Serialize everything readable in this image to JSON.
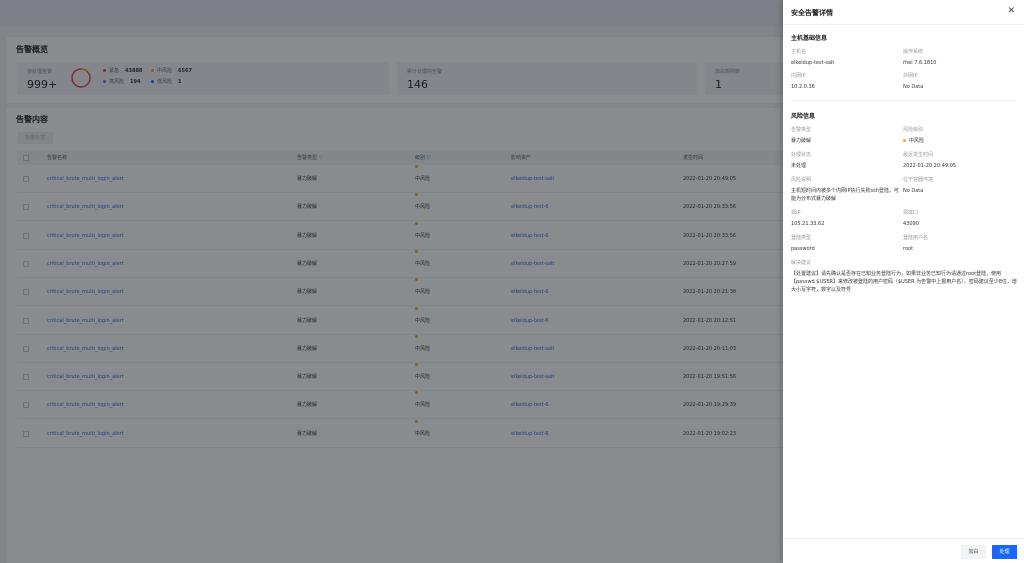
{
  "overview": {
    "title": "告警概览",
    "pending_label": "待处理告警",
    "pending_value": "999+",
    "legend": [
      {
        "label": "紧急",
        "value": "43888",
        "color": "#e0474c"
      },
      {
        "label": "中风险",
        "value": "6567",
        "color": "#f5a623"
      },
      {
        "label": "高风险",
        "value": "194",
        "color": "#7b61ff"
      },
      {
        "label": "低风险",
        "value": "1",
        "color": "#1966ff"
      }
    ],
    "handled_label": "累计处理的告警",
    "handled_value": "146",
    "whitelist_label": "加白规则数",
    "whitelist_value": "1"
  },
  "content": {
    "title": "告警内容",
    "batch_button": "批量处理",
    "columns": [
      "告警名称",
      "告警类型",
      "级别",
      "影响资产",
      "发生时间"
    ],
    "rows": [
      {
        "name": "critical_brute_multi_login_alert",
        "type": "暴力破解",
        "level": "中风险",
        "asset": "elkeidup-test-salt",
        "time": "2022-01-20 20:49:05"
      },
      {
        "name": "critical_brute_multi_login_alert",
        "type": "暴力破解",
        "level": "中风险",
        "asset": "elkeidup-test-6",
        "time": "2022-01-20 20:33:56"
      },
      {
        "name": "critical_brute_multi_login_alert",
        "type": "暴力破解",
        "level": "中风险",
        "asset": "elkeidup-test-6",
        "time": "2022-01-20 20:33:56"
      },
      {
        "name": "critical_brute_multi_login_alert",
        "type": "暴力破解",
        "level": "中风险",
        "asset": "elkeidup-test-salt",
        "time": "2022-01-20 20:27:59"
      },
      {
        "name": "critical_brute_multi_login_alert",
        "type": "暴力破解",
        "level": "中风险",
        "asset": "elkeidup-test-6",
        "time": "2022-01-20 20:21:38"
      },
      {
        "name": "critical_brute_multi_login_alert",
        "type": "暴力破解",
        "level": "中风险",
        "asset": "elkeidup-test-6",
        "time": "2022-01-20 20:12:51"
      },
      {
        "name": "critical_brute_multi_login_alert",
        "type": "暴力破解",
        "level": "中风险",
        "asset": "elkeidup-test-salt",
        "time": "2022-01-20 20:11:03"
      },
      {
        "name": "critical_brute_multi_login_alert",
        "type": "暴力破解",
        "level": "中风险",
        "asset": "elkeidup-test-salt",
        "time": "2022-01-20 19:51:56"
      },
      {
        "name": "critical_brute_multi_login_alert",
        "type": "暴力破解",
        "level": "中风险",
        "asset": "elkeidup-test-6",
        "time": "2022-01-20 19:29:39"
      },
      {
        "name": "critical_brute_multi_login_alert",
        "type": "暴力破解",
        "level": "中风险",
        "asset": "elkeidup-test-6",
        "time": "2022-01-20 19:02:23"
      }
    ]
  },
  "drawer": {
    "title": "安全告警详情",
    "close": "✕",
    "host_section": "主机基础信息",
    "host": [
      {
        "k": "主机名",
        "v": "elkeidup-test-salt"
      },
      {
        "k": "操作系统",
        "v": "rhel 7.6.1810"
      },
      {
        "k": "内网IP",
        "v": "10.2.0.36"
      },
      {
        "k": "外网IP",
        "v": "No Data"
      }
    ],
    "risk_section": "风险信息",
    "risk": [
      {
        "k": "告警类型",
        "v": "暴力破解"
      },
      {
        "k": "风险级别",
        "v": "中风险"
      },
      {
        "k": "处理状态",
        "v": "未处理"
      },
      {
        "k": "最近发生时间",
        "v": "2022-01-20 20:49:05"
      },
      {
        "k": "风险说明",
        "v": "主机短时间内被多个内网IP执行失败ssh登陆，可能为分布式暴力破解"
      },
      {
        "k": "位于容器环境",
        "v": "No Data"
      },
      {
        "k": "源IP",
        "v": "105.21.33.62"
      },
      {
        "k": "源端口",
        "v": "43090"
      },
      {
        "k": "登陆类型",
        "v": "password"
      },
      {
        "k": "登陆用户名",
        "v": "root"
      }
    ],
    "suggest_label": "解决建议",
    "suggest": "【处置建议】请先确认是否存在已知业务登陆行为，如果非业务已知行为请通过root登陆，使用【passwd $USER】来修改被登陆的用户密码（$USER 为告警中上报用户名），密码建议至少8位，增大小写字符，数字以及符号",
    "whitelist_button": "加白",
    "handle_button": "处理"
  },
  "colors": {
    "primary": "#1966ff",
    "medium": "#f5a623"
  }
}
